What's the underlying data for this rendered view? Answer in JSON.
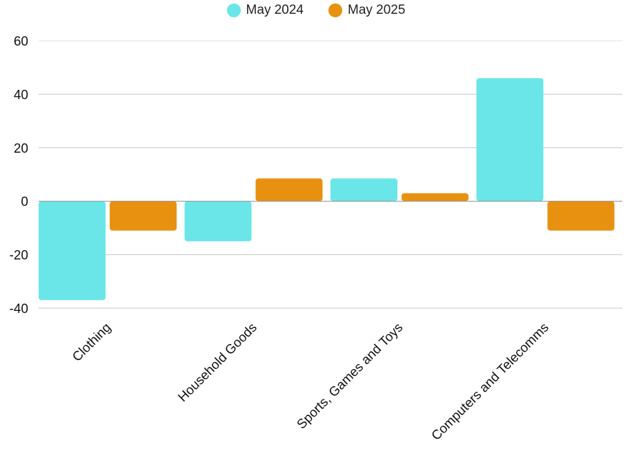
{
  "chart_data": {
    "type": "bar",
    "categories": [
      "Clothing",
      "Household Goods",
      "Sports, Games and Toys",
      "Computers and Telecomms"
    ],
    "series": [
      {
        "name": "May 2024",
        "color": "#6AE6E8",
        "values": [
          -37,
          -15,
          8.5,
          46
        ]
      },
      {
        "name": "May 2025",
        "color": "#E89110",
        "values": [
          -11,
          8.5,
          3,
          -11
        ]
      }
    ],
    "title": "",
    "xlabel": "",
    "ylabel": "",
    "ylim": [
      -40,
      60
    ],
    "yticks": [
      60,
      40,
      20,
      0,
      -20,
      -40
    ],
    "grid": true,
    "legend_position": "top-center"
  }
}
